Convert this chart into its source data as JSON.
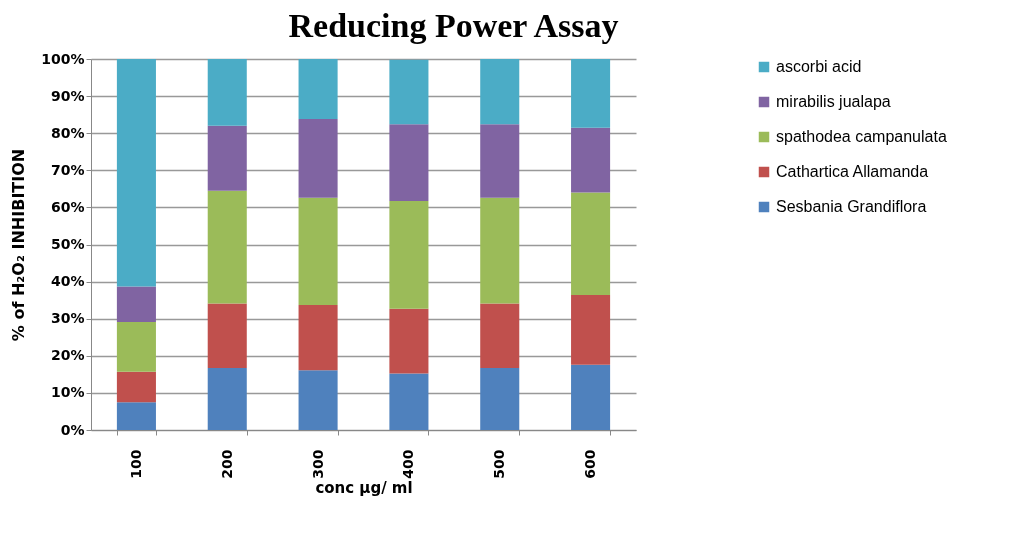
{
  "chart_data": {
    "type": "bar",
    "title": "Reducing Power Assay",
    "xlabel": "conc μg/ ml",
    "ylabel": "% of H₂O₂ INHIBITION",
    "categories": [
      "100",
      "200",
      "300",
      "400",
      "500",
      "600"
    ],
    "stacked": true,
    "series": [
      {
        "name": "Sesbania Grandiflora",
        "color": "#4f81bd",
        "values": [
          7.5,
          16.7,
          16.1,
          15.2,
          16.7,
          17.6
        ]
      },
      {
        "name": "Cathartica Allamanda",
        "color": "#c0504d",
        "values": [
          8.2,
          17.4,
          17.6,
          17.5,
          17.4,
          18.8
        ]
      },
      {
        "name": "spathodea campanulata",
        "color": "#9bbb59",
        "values": [
          13.4,
          30.4,
          28.9,
          29.0,
          28.5,
          27.6
        ]
      },
      {
        "name": "mirabilis jualapa",
        "color": "#8064a2",
        "values": [
          9.6,
          17.5,
          21.2,
          20.7,
          19.8,
          17.5
        ]
      },
      {
        "name": "ascorbi acid",
        "color": "#4bacc6",
        "values": [
          61.3,
          18.0,
          16.2,
          17.4,
          17.6,
          18.5
        ]
      }
    ],
    "ylim": [
      0,
      100
    ],
    "yticks": [
      {
        "value": 0,
        "label": "0%"
      },
      {
        "value": 10,
        "label": "10%"
      },
      {
        "value": 20,
        "label": "20%"
      },
      {
        "value": 30,
        "label": "30%"
      },
      {
        "value": 40,
        "label": "40%"
      },
      {
        "value": 50,
        "label": "50%"
      },
      {
        "value": 60,
        "label": "60%"
      },
      {
        "value": 70,
        "label": "70%"
      },
      {
        "value": 80,
        "label": "80%"
      },
      {
        "value": 90,
        "label": "90%"
      },
      {
        "value": 100,
        "label": "100%"
      }
    ],
    "grid": "y",
    "legend": "right"
  }
}
